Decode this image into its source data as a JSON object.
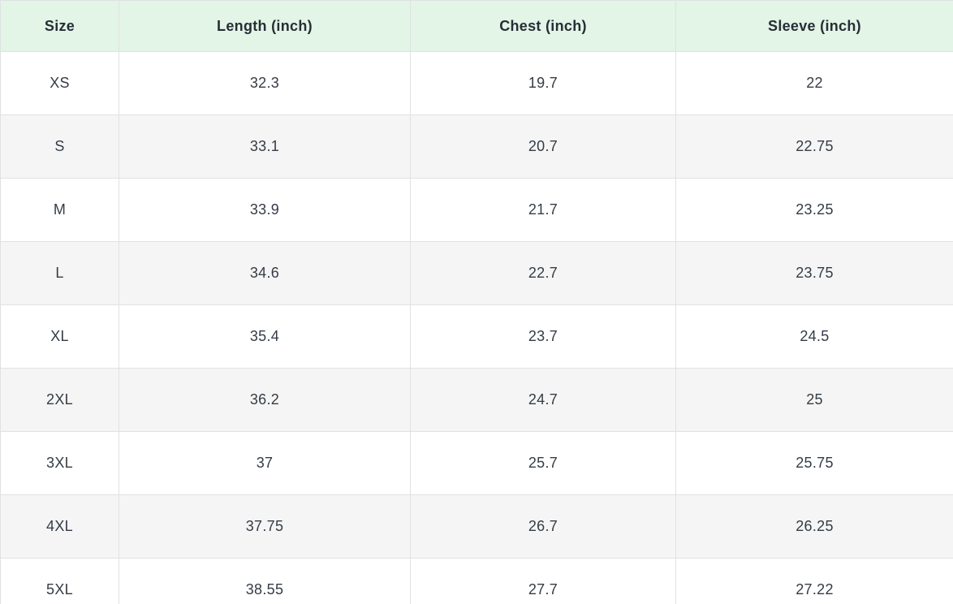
{
  "table": {
    "columns": [
      {
        "label": "Size"
      },
      {
        "label": "Length (inch)"
      },
      {
        "label": "Chest (inch)"
      },
      {
        "label": "Sleeve (inch)"
      }
    ],
    "rows": [
      {
        "size": "XS",
        "length": "32.3",
        "chest": "19.7",
        "sleeve": "22"
      },
      {
        "size": "S",
        "length": "33.1",
        "chest": "20.7",
        "sleeve": "22.75"
      },
      {
        "size": "M",
        "length": "33.9",
        "chest": "21.7",
        "sleeve": "23.25"
      },
      {
        "size": "L",
        "length": "34.6",
        "chest": "22.7",
        "sleeve": "23.75"
      },
      {
        "size": "XL",
        "length": "35.4",
        "chest": "23.7",
        "sleeve": "24.5"
      },
      {
        "size": "2XL",
        "length": "36.2",
        "chest": "24.7",
        "sleeve": "25"
      },
      {
        "size": "3XL",
        "length": "37",
        "chest": "25.7",
        "sleeve": "25.75"
      },
      {
        "size": "4XL",
        "length": "37.75",
        "chest": "26.7",
        "sleeve": "26.25"
      },
      {
        "size": "5XL",
        "length": "38.55",
        "chest": "27.7",
        "sleeve": "27.22"
      }
    ]
  },
  "colors": {
    "header_bg": "#e2f5e7",
    "row_alt_bg": "#f5f5f5",
    "border": "#e0e2e2",
    "text": "#353c46"
  },
  "chart_data": {
    "type": "table",
    "title": "Garment size chart (inches)",
    "columns": [
      "Size",
      "Length (inch)",
      "Chest (inch)",
      "Sleeve (inch)"
    ],
    "rows": [
      [
        "XS",
        32.3,
        19.7,
        22
      ],
      [
        "S",
        33.1,
        20.7,
        22.75
      ],
      [
        "M",
        33.9,
        21.7,
        23.25
      ],
      [
        "L",
        34.6,
        22.7,
        23.75
      ],
      [
        "XL",
        35.4,
        23.7,
        24.5
      ],
      [
        "2XL",
        36.2,
        24.7,
        25
      ],
      [
        "3XL",
        37,
        25.7,
        25.75
      ],
      [
        "4XL",
        37.75,
        26.7,
        26.25
      ],
      [
        "5XL",
        38.55,
        27.7,
        27.22
      ]
    ],
    "layout_hints": {
      "header_background": "#e2f5e7",
      "zebra_striping": "alternate rows #f5f5f5 starting at second data row",
      "grid": true
    }
  }
}
